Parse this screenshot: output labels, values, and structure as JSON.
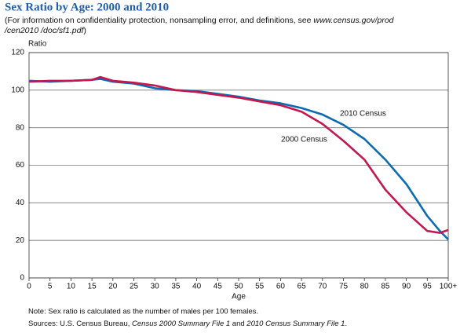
{
  "chart_data": {
    "type": "line",
    "title": "Sex Ratio by Age: 2000 and 2010",
    "subtitle_line1": "(For information on confidentiality protection, nonsampling error, and definitions, see ",
    "subtitle_link1": "www.census.gov/prod",
    "subtitle_link2": "/cen2010 /doc/sf1.pdf",
    "subtitle_end": ")",
    "y_label": "Ratio",
    "x_label": "Age",
    "note": "Note: Sex ratio is calculated as the number of males per 100 females.",
    "source_parts": [
      {
        "text": "Sources: U.S. Census Bureau, ",
        "italic": false
      },
      {
        "text": "Census 2000 Summary File 1",
        "italic": true
      },
      {
        "text": " and ",
        "italic": false
      },
      {
        "text": "2010 Census Summary File 1",
        "italic": true
      },
      {
        "text": ".",
        "italic": false
      }
    ],
    "x": [
      0,
      5,
      10,
      15,
      17,
      20,
      25,
      30,
      35,
      40,
      45,
      50,
      55,
      60,
      65,
      70,
      75,
      80,
      85,
      90,
      95,
      98,
      100
    ],
    "series": [
      {
        "name": "2010 Census",
        "color": "#0b6bb5",
        "values": [
          105,
          104.5,
          105,
          105.5,
          106,
          104.5,
          103.5,
          101,
          100,
          99.5,
          98,
          96.5,
          94.5,
          93,
          90.5,
          87,
          81.5,
          74,
          63,
          50,
          33,
          25,
          20.5
        ]
      },
      {
        "name": "2000 Census",
        "color": "#c5164e",
        "values": [
          104.5,
          105,
          105,
          105.5,
          107,
          105,
          104,
          102.5,
          100,
          99,
          97.5,
          96,
          94,
          92,
          88.5,
          82,
          73,
          63,
          47,
          35,
          25,
          24,
          25.5
        ]
      }
    ],
    "xlim": [
      0,
      100
    ],
    "xticks": [
      0,
      5,
      10,
      15,
      20,
      25,
      30,
      35,
      40,
      45,
      50,
      55,
      60,
      65,
      70,
      75,
      80,
      85,
      90,
      95,
      {
        "value": 100,
        "label": "100+"
      }
    ],
    "ylim": [
      0,
      120
    ],
    "yticks": [
      0,
      20,
      40,
      60,
      80,
      100,
      120
    ],
    "grid": true
  }
}
